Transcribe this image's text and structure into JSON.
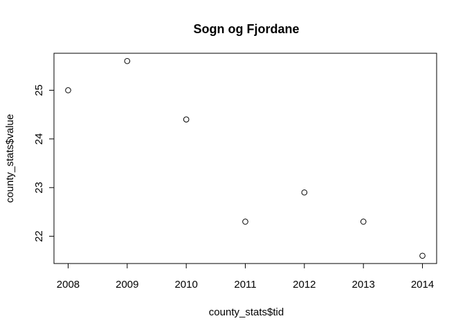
{
  "chart_data": {
    "type": "scatter",
    "title": "Sogn og Fjordane",
    "xlabel": "county_stats$tid",
    "ylabel": "county_stats$value",
    "x": [
      2008,
      2009,
      2010,
      2011,
      2012,
      2013,
      2014
    ],
    "y": [
      25.0,
      25.6,
      24.4,
      22.3,
      22.9,
      22.3,
      21.6
    ],
    "xlim": [
      2007.76,
      2014.24
    ],
    "ylim": [
      21.44,
      25.76
    ],
    "xticks": [
      2008,
      2009,
      2010,
      2011,
      2012,
      2013,
      2014
    ],
    "yticks": [
      22,
      23,
      24,
      25
    ],
    "grid": false,
    "marker": "open-circle",
    "colors": {
      "points": "#000000",
      "axes": "#000000",
      "background": "#ffffff"
    }
  }
}
